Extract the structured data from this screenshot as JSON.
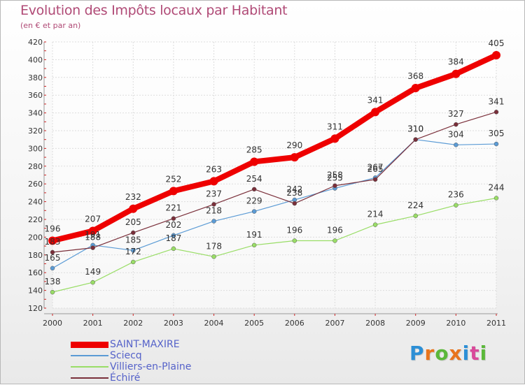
{
  "title": "Evolution des Impôts locaux par Habitant",
  "subtitle": "(en € et par an)",
  "logo": {
    "letters": [
      "P",
      "r",
      "o",
      "x",
      "i",
      "t",
      "i"
    ],
    "colors": [
      "#2c8fd6",
      "#e8741c",
      "#5bb83a",
      "#e8741c",
      "#2c8fd6",
      "#d94a9a",
      "#5bb83a"
    ]
  },
  "chart_data": {
    "type": "line",
    "x": [
      "2000",
      "2001",
      "2002",
      "2003",
      "2004",
      "2005",
      "2006",
      "2007",
      "2008",
      "2009",
      "2010",
      "2011"
    ],
    "ylim": [
      120,
      420
    ],
    "yticks": [
      120,
      140,
      160,
      180,
      200,
      220,
      240,
      260,
      280,
      300,
      320,
      340,
      360,
      380,
      400,
      420
    ],
    "grid": true,
    "legend_position": "bottom-left",
    "series": [
      {
        "name": "SAINT-MAXIRE",
        "color": "#ee0000",
        "values": [
          196,
          207,
          232,
          252,
          263,
          285,
          290,
          311,
          341,
          368,
          384,
          405
        ],
        "labels": [
          "196",
          "207",
          "232",
          "252",
          "263",
          "285",
          "290",
          "311",
          "341",
          "368",
          "384",
          "405"
        ]
      },
      {
        "name": "Sciecq",
        "color": "#5b9bd5",
        "values": [
          165,
          191,
          185,
          202,
          218,
          229,
          242,
          255,
          267,
          310,
          304,
          305
        ],
        "labels": [
          "165",
          "191",
          "185",
          "202",
          "218",
          "229",
          "242",
          "255",
          "267",
          "310",
          "304",
          "305"
        ]
      },
      {
        "name": "Villiers-en-Plaine",
        "color": "#99dd66",
        "values": [
          138,
          149,
          172,
          187,
          178,
          191,
          196,
          196,
          214,
          224,
          236,
          244
        ],
        "labels": [
          "138",
          "149",
          "172",
          "187",
          "178",
          "191",
          "196",
          "196",
          "214",
          "224",
          "236",
          "244"
        ]
      },
      {
        "name": "Échiré",
        "color": "#7a2f3a",
        "values": [
          183,
          188,
          205,
          221,
          237,
          254,
          238,
          258,
          265,
          310,
          327,
          341
        ],
        "labels": [
          "183",
          "188",
          "205",
          "221",
          "237",
          "254",
          "238",
          "258",
          "265",
          "310",
          "327",
          "341"
        ]
      }
    ]
  }
}
